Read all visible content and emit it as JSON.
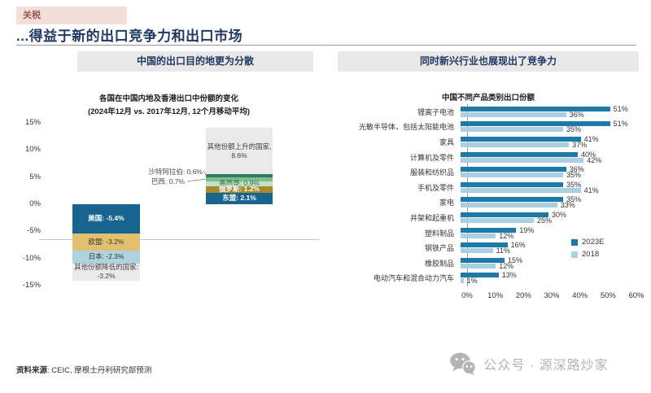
{
  "tag": {
    "label": "关税"
  },
  "title": "...得益于新的出口竞争力和出口市场",
  "left_panel": {
    "header": "中国的出口目的地更为分散"
  },
  "right_panel": {
    "header": "同时新兴行业也展现出了竞争力"
  },
  "footer": {
    "source_label": "资料来源",
    "source_rest": ": CEIC, 摩根士丹利研究部预测"
  },
  "watermark": {
    "icon": "wechat-logo",
    "text": "公众号 · 源深路炒家"
  },
  "chart_data": [
    {
      "type": "bar",
      "subtype": "diverging-stacked-column",
      "title": "各国在中国内地及香港出口中份额的变化",
      "subtitle": "(2024年12月 vs. 2017年12月, 12个月移动平均)",
      "ylim": [
        -15,
        15
      ],
      "yticks": [
        "15%",
        "10%",
        "5%",
        "0%",
        "-5%",
        "-10%",
        "-15%"
      ],
      "grid": false,
      "columns": [
        {
          "name": "份额降低的经济体",
          "direction": "negative",
          "segments": [
            {
              "label": "美国",
              "value": -5.4,
              "text": "美国: -5.4%",
              "color": "#17658e",
              "text_color": "#ffffff",
              "bold": true
            },
            {
              "label": "欧盟",
              "value": -3.2,
              "text": "欧盟: -3.2%",
              "color": "#e2c06d",
              "text_color": "#333333",
              "bold": false
            },
            {
              "label": "日本",
              "value": -2.3,
              "text": "日本: -2.3%",
              "color": "#aed3de",
              "text_color": "#333333",
              "bold": false
            },
            {
              "label": "其他份额降低的国家",
              "value": -3.2,
              "text": "其他份额降低的国家:",
              "value_text": "-3.2%",
              "color": "#eaeaea",
              "text_color": "#404040",
              "bold": false
            }
          ]
        },
        {
          "name": "份额上升的经济体",
          "direction": "positive",
          "segments": [
            {
              "label": "其他份额上升的国家",
              "value": 8.6,
              "text": "其他份额上升的国家,",
              "value_text": "8.6%",
              "color": "#eaeaea",
              "text_color": "#404040",
              "bold": false,
              "wrap": true
            },
            {
              "label": "沙特阿拉伯",
              "value": 0.6,
              "color": "#2e7d68",
              "annotation": "沙特阿拉伯: 0.6%"
            },
            {
              "label": "巴西",
              "value": 0.7,
              "color": "#7fbc88",
              "annotation": "巴西: 0.7%"
            },
            {
              "label": "墨西哥",
              "value": 0.9,
              "text": "墨西哥: 0.9%",
              "color": "#c3e0c8",
              "text_color": "#2e6b50",
              "bold": false
            },
            {
              "label": "俄罗斯",
              "value": 1.2,
              "text": "俄罗斯: 1.2%",
              "color": "#a58b2c",
              "text_color": "#ffffff",
              "bold": true
            },
            {
              "label": "东盟",
              "value": 2.1,
              "text": "东盟: 2.1%",
              "color": "#17658e",
              "text_color": "#ffffff",
              "bold": true
            }
          ]
        }
      ]
    },
    {
      "type": "bar",
      "orientation": "horizontal",
      "title": "中国不同产品类别出口份额",
      "categories": [
        "锂离子电池",
        "光敏半导体，包括太阳能电池",
        "家具",
        "计算机及零件",
        "服装和纺织品",
        "手机及零件",
        "家电",
        "井架和起重机",
        "塑料制品",
        "钢铁产品",
        "橡胶制品",
        "电动汽车和混合动力汽车"
      ],
      "series": [
        {
          "name": "2023E",
          "color": "#1e79ab",
          "values": [
            51,
            51,
            41,
            40,
            36,
            35,
            35,
            30,
            19,
            16,
            15,
            13
          ]
        },
        {
          "name": "2018",
          "color": "#a9cfe1",
          "values": [
            36,
            35,
            37,
            42,
            35,
            41,
            33,
            25,
            12,
            11,
            12,
            1
          ]
        }
      ],
      "xlim": [
        0,
        60
      ],
      "xticks": [
        "0%",
        "10%",
        "20%",
        "30%",
        "40%",
        "50%",
        "60%"
      ],
      "legend_position": "right",
      "grid": false
    }
  ]
}
